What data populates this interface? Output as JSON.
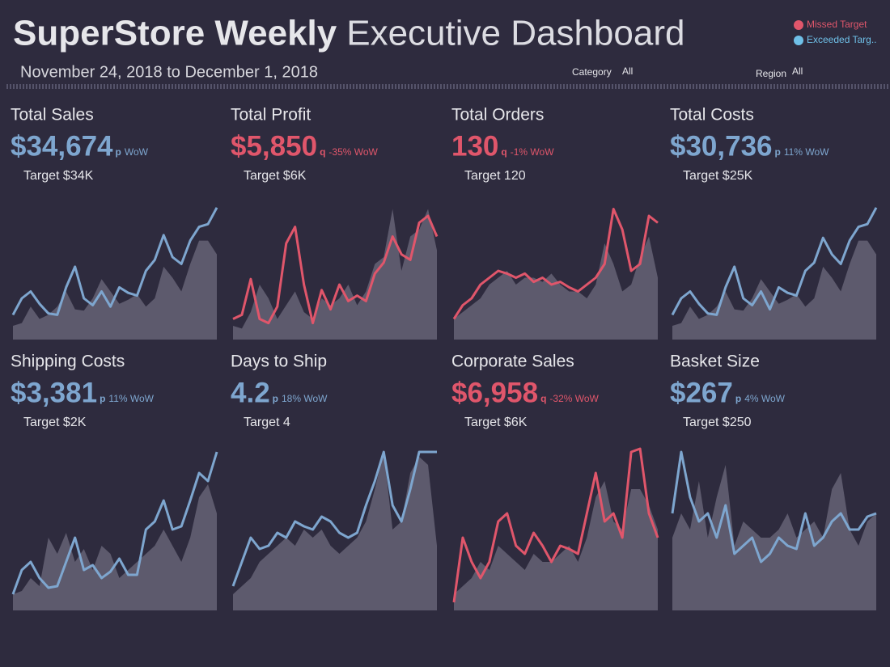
{
  "header": {
    "title_bold": "SuperStore Weekly",
    "title_light": "Executive Dashboard",
    "date_range": "November 24, 2018 to December 1, 2018"
  },
  "filters": [
    {
      "label": "Category",
      "value": "All"
    },
    {
      "label": "Region",
      "value": "All"
    }
  ],
  "legend": [
    {
      "name": "Missed Target",
      "color": "#e0566b"
    },
    {
      "name": "Exceeded Targ..",
      "color": "#6fc0e8"
    }
  ],
  "chart_data": [
    {
      "type": "line",
      "title": "Total Sales",
      "value": "$34,674",
      "arrow": "p",
      "change": "WoW",
      "target": "Target $34K",
      "color": "#7ea6cf",
      "ylim": [
        0,
        100
      ],
      "values": [
        18,
        30,
        35,
        26,
        19,
        18,
        38,
        53,
        30,
        25,
        35,
        24,
        38,
        34,
        32,
        50,
        58,
        76,
        60,
        55,
        72,
        82,
        84,
        96
      ],
      "area": {
        "color": "#5d5a6d",
        "values": [
          10,
          12,
          24,
          15,
          18,
          24,
          35,
          22,
          21,
          30,
          44,
          35,
          26,
          29,
          33,
          24,
          30,
          53,
          45,
          35,
          55,
          72,
          72,
          62
        ]
      }
    },
    {
      "type": "line",
      "title": "Total Profit",
      "value": "$5,850",
      "arrow": "q",
      "change": "-35% WoW",
      "target": "Target $6K",
      "color": "#e0566b",
      "ylim": [
        0,
        100
      ],
      "values": [
        15,
        18,
        44,
        15,
        12,
        24,
        70,
        82,
        40,
        12,
        36,
        22,
        40,
        28,
        32,
        28,
        48,
        56,
        75,
        62,
        58,
        85,
        90,
        75
      ],
      "area": {
        "color": "#5d5a6d",
        "values": [
          10,
          8,
          20,
          40,
          30,
          15,
          25,
          35,
          20,
          15,
          30,
          25,
          30,
          40,
          25,
          35,
          55,
          60,
          95,
          50,
          75,
          80,
          95,
          65
        ]
      }
    },
    {
      "type": "line",
      "title": "Total Orders",
      "value": "130",
      "arrow": "q",
      "change": "-1% WoW",
      "target": "Target 120",
      "color": "#e0566b",
      "ylim": [
        0,
        100
      ],
      "values": [
        15,
        25,
        30,
        40,
        45,
        50,
        48,
        45,
        48,
        42,
        45,
        40,
        42,
        38,
        35,
        40,
        45,
        55,
        95,
        80,
        50,
        55,
        90,
        85
      ],
      "area": {
        "color": "#5d5a6d",
        "values": [
          15,
          20,
          25,
          30,
          40,
          45,
          50,
          40,
          45,
          45,
          42,
          48,
          40,
          35,
          35,
          30,
          40,
          70,
          55,
          35,
          40,
          60,
          75,
          45
        ]
      }
    },
    {
      "type": "line",
      "title": "Total Costs",
      "value": "$30,736",
      "arrow": "p",
      "change": "11% WoW",
      "target": "Target $25K",
      "color": "#7ea6cf",
      "ylim": [
        0,
        100
      ],
      "values": [
        18,
        30,
        35,
        26,
        19,
        18,
        38,
        53,
        30,
        25,
        35,
        22,
        38,
        34,
        32,
        50,
        56,
        74,
        62,
        55,
        72,
        82,
        84,
        96
      ],
      "area": {
        "color": "#5d5a6d",
        "values": [
          10,
          12,
          24,
          15,
          18,
          24,
          35,
          22,
          21,
          30,
          44,
          35,
          26,
          29,
          33,
          24,
          30,
          53,
          45,
          35,
          55,
          72,
          72,
          62
        ]
      }
    },
    {
      "type": "line",
      "title": "Shipping Costs",
      "value": "$3,381",
      "arrow": "p",
      "change": "11% WoW",
      "target": "Target $2K",
      "color": "#7ea6cf",
      "ylim": [
        0,
        100
      ],
      "values": [
        10,
        25,
        30,
        20,
        14,
        15,
        30,
        45,
        25,
        28,
        20,
        24,
        32,
        22,
        22,
        50,
        55,
        68,
        50,
        52,
        68,
        85,
        80,
        98
      ],
      "area": {
        "color": "#5d5a6d",
        "values": [
          10,
          12,
          20,
          15,
          45,
          35,
          48,
          30,
          38,
          25,
          40,
          35,
          20,
          25,
          30,
          35,
          40,
          50,
          40,
          30,
          45,
          70,
          78,
          60
        ]
      }
    },
    {
      "type": "line",
      "title": "Days to Ship",
      "value": "4.2",
      "arrow": "p",
      "change": "18% WoW",
      "target": "Target 4",
      "color": "#7ea6cf",
      "ylim": [
        0,
        100
      ],
      "values": [
        15,
        30,
        45,
        38,
        40,
        48,
        45,
        55,
        52,
        50,
        58,
        55,
        48,
        45,
        48,
        65,
        80,
        98,
        65,
        55,
        75,
        98,
        98,
        98
      ],
      "area": {
        "color": "#5d5a6d",
        "values": [
          10,
          15,
          20,
          30,
          35,
          40,
          45,
          40,
          50,
          45,
          50,
          40,
          35,
          40,
          45,
          55,
          75,
          98,
          50,
          55,
          85,
          95,
          90,
          40
        ]
      }
    },
    {
      "type": "line",
      "title": "Corporate Sales",
      "value": "$6,958",
      "arrow": "q",
      "change": "-32% WoW",
      "target": "Target $6K",
      "color": "#e0566b",
      "ylim": [
        0,
        100
      ],
      "values": [
        5,
        45,
        30,
        20,
        30,
        55,
        60,
        40,
        35,
        48,
        40,
        30,
        40,
        38,
        35,
        60,
        85,
        55,
        60,
        45,
        98,
        100,
        60,
        45
      ],
      "area": {
        "color": "#5d5a6d",
        "values": [
          10,
          15,
          20,
          30,
          25,
          40,
          35,
          30,
          25,
          35,
          30,
          30,
          35,
          40,
          30,
          45,
          70,
          80,
          55,
          50,
          75,
          75,
          65,
          50
        ]
      }
    },
    {
      "type": "line",
      "title": "Basket Size",
      "value": "$267",
      "arrow": "p",
      "change": "4% WoW",
      "target": "Target $250",
      "color": "#7ea6cf",
      "ylim": [
        0,
        100
      ],
      "values": [
        60,
        98,
        70,
        55,
        60,
        45,
        65,
        35,
        40,
        45,
        30,
        35,
        45,
        40,
        38,
        60,
        40,
        45,
        55,
        60,
        50,
        50,
        58,
        60
      ],
      "area": {
        "color": "#5d5a6d",
        "values": [
          45,
          60,
          50,
          80,
          45,
          70,
          90,
          40,
          55,
          50,
          45,
          45,
          50,
          60,
          45,
          50,
          55,
          45,
          75,
          85,
          50,
          40,
          55,
          60
        ]
      }
    }
  ]
}
